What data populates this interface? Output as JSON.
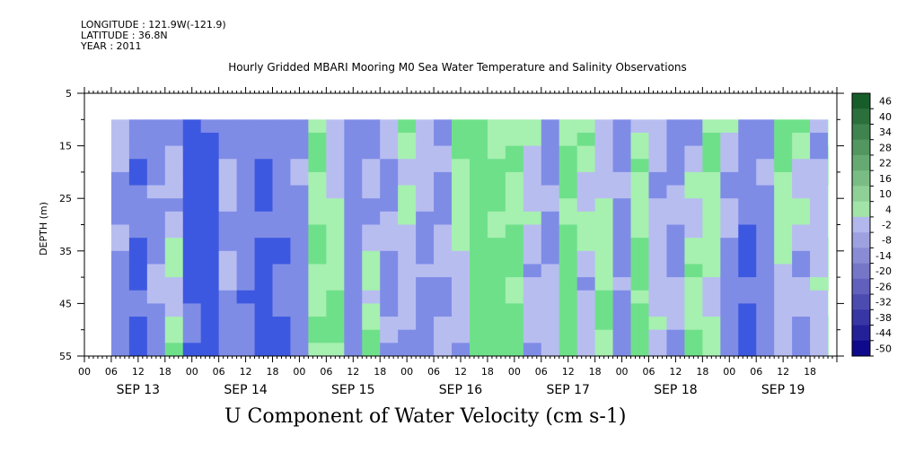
{
  "meta": {
    "longitude": "LONGITUDE : 121.9W(-121.9)",
    "latitude": "LATITUDE : 36.8N",
    "year": "YEAR : 2011"
  },
  "title": "Hourly Gridded MBARI Mooring M0 Sea Water Temperature and Salinity Observations",
  "bottom_title": "U Component of Water Velocity (cm s-1)",
  "chart_data": {
    "type": "heatmap",
    "title": "Hourly Gridded MBARI Mooring M0 Sea Water Temperature and Salinity Observations",
    "xlabel": "",
    "ylabel": "DEPTH (m)",
    "y_ticks": [
      "5",
      "15",
      "25",
      "35",
      "45",
      "55"
    ],
    "ylim": [
      5,
      55
    ],
    "y_inverted": true,
    "x_hour_ticks": [
      "00",
      "06",
      "12",
      "18",
      "00",
      "06",
      "12",
      "18",
      "00",
      "06",
      "12",
      "18",
      "00",
      "06",
      "12",
      "18",
      "00",
      "06",
      "12",
      "18",
      "00",
      "06",
      "12",
      "18",
      "00",
      "06",
      "12",
      "18"
    ],
    "x_day_labels": [
      "SEP 13",
      "SEP 14",
      "SEP 15",
      "SEP 16",
      "SEP 17",
      "SEP 18",
      "SEP 19"
    ],
    "data_depth_range": [
      10,
      55
    ],
    "data_time_range_hours": [
      6,
      166
    ],
    "colorbar_labels": [
      "46",
      "40",
      "34",
      "28",
      "22",
      "16",
      "10",
      "4",
      "-2",
      "-8",
      "-14",
      "-20",
      "-26",
      "-32",
      "-38",
      "-44",
      "-50"
    ],
    "colorbar_range": [
      -50,
      50
    ],
    "colorscale": {
      "negative_light": "#b8bdf0",
      "negative_mid": "#7f8ce6",
      "negative_dark": "#3d58e0",
      "positive_light": "#a6f0b0",
      "positive_mid": "#6fe08a",
      "positive_dark": "#2ecc55"
    },
    "profile_columns_hour": [
      6,
      10,
      14,
      18,
      22,
      26,
      30,
      34,
      38,
      42,
      46,
      50,
      54,
      58,
      62,
      66,
      70,
      74,
      78,
      82,
      86,
      90,
      94,
      98,
      102,
      106,
      110,
      114,
      118,
      122,
      126,
      130,
      134,
      138,
      142,
      146,
      150,
      154,
      158,
      162,
      166
    ],
    "profile_values_surface": [
      -6,
      -14,
      -10,
      -8,
      -22,
      -18,
      -4,
      -12,
      -16,
      -10,
      -6,
      6,
      -4,
      -12,
      -10,
      -6,
      4,
      -2,
      -8,
      8,
      12,
      6,
      4,
      -2,
      -10,
      6,
      4,
      -4,
      -6,
      2,
      -4,
      -8,
      -6,
      6,
      -2,
      -12,
      -6,
      10,
      4,
      -4,
      4
    ],
    "profile_values_bottom": [
      -10,
      -18,
      -6,
      4,
      -16,
      -24,
      -8,
      -14,
      -20,
      -18,
      -12,
      4,
      8,
      -10,
      6,
      -8,
      -6,
      -12,
      -4,
      -6,
      12,
      10,
      8,
      -4,
      -2,
      10,
      -6,
      8,
      -10,
      10,
      -2,
      -4,
      8,
      -2,
      -12,
      -20,
      -14,
      -6,
      -10,
      -2,
      8
    ]
  }
}
